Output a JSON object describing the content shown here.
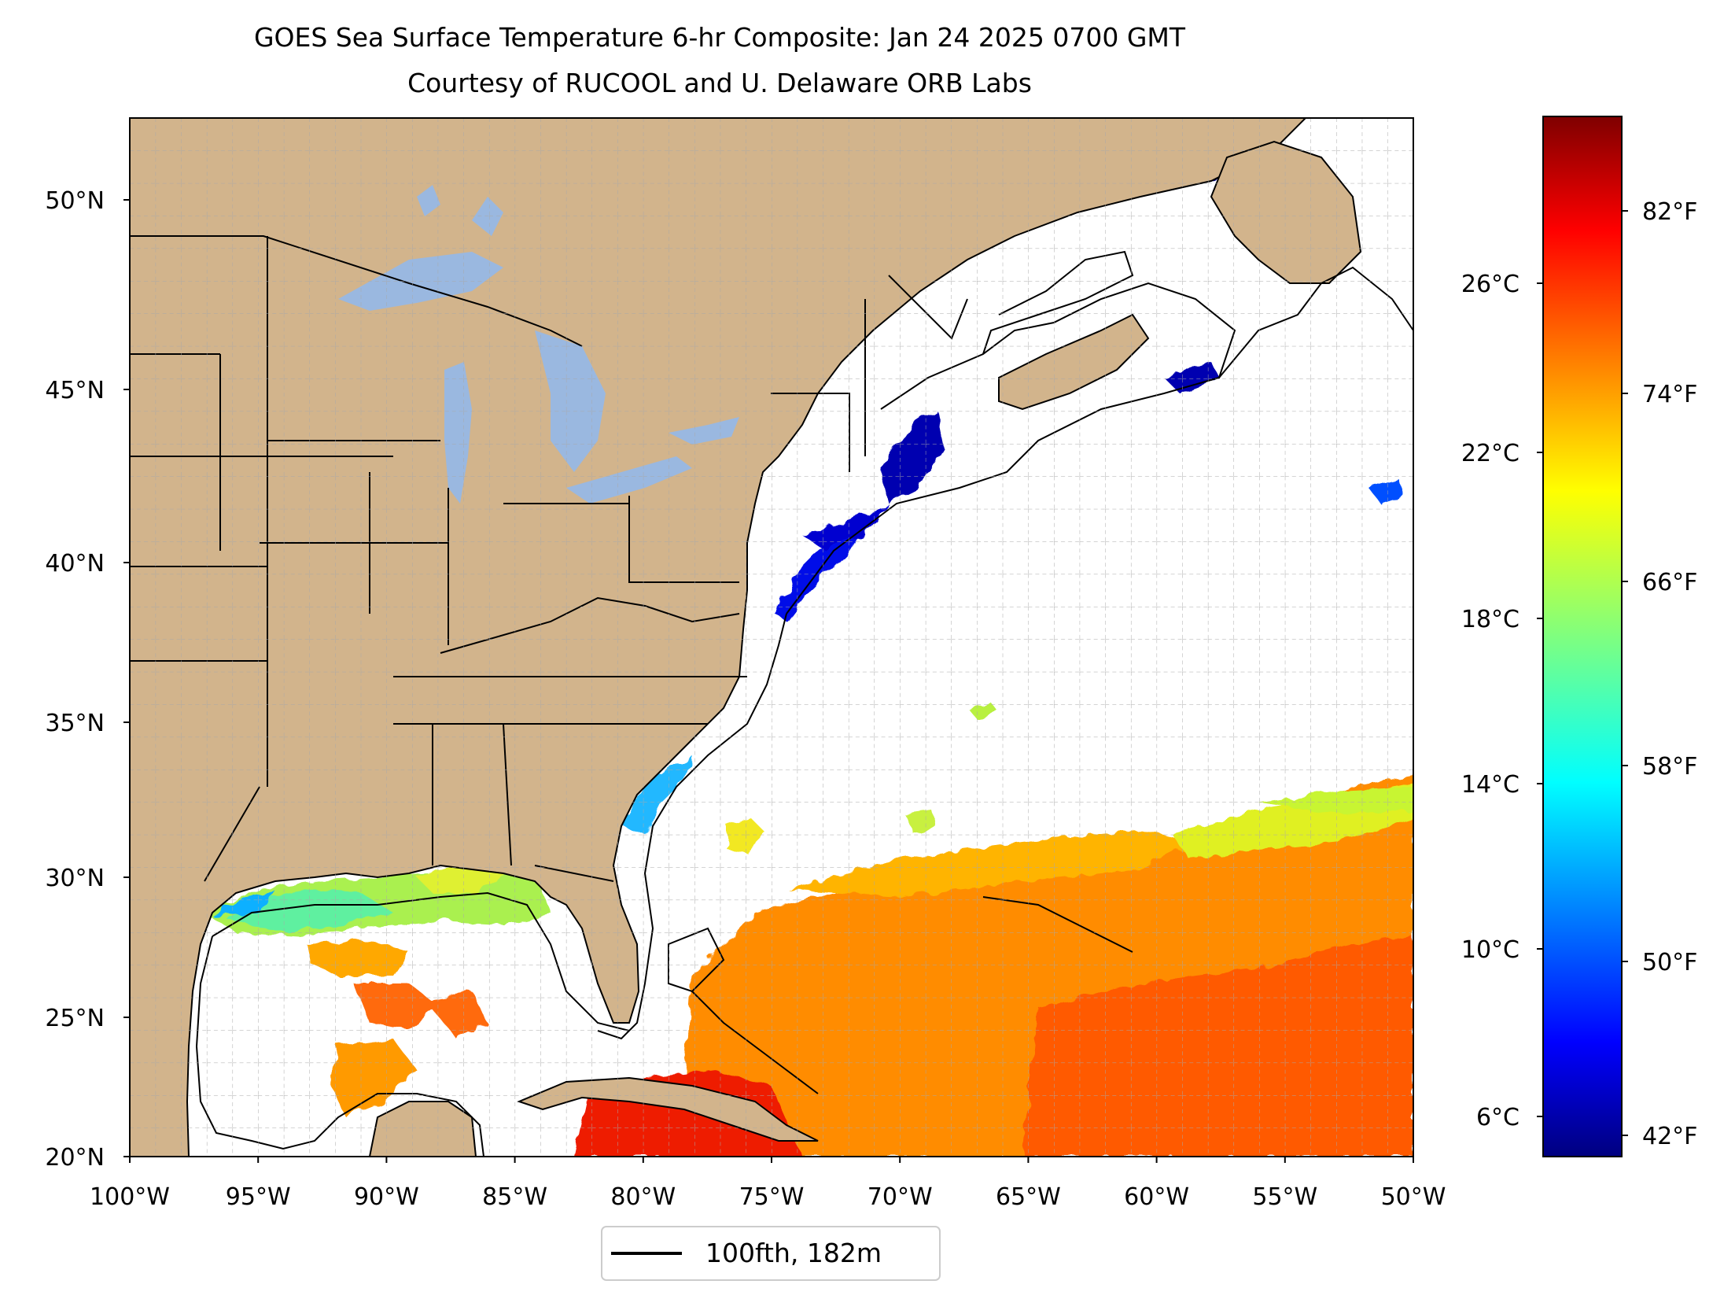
{
  "title": "GOES Sea Surface Temperature 6-hr Composite: Jan 24 2025 0700 GMT",
  "subtitle": "Courtesy of RUCOOL and U. Delaware ORB Labs",
  "map": {
    "lon_range": [
      -100,
      -50
    ],
    "lat_range": [
      20,
      52
    ],
    "gridlines": "on, dashed, 1 degree spacing",
    "land_color": "#d2b48c",
    "lake_color": "#9ab8e0",
    "lon_ticks": [
      "100°W",
      "95°W",
      "90°W",
      "85°W",
      "80°W",
      "75°W",
      "70°W",
      "65°W",
      "60°W",
      "55°W",
      "50°W"
    ],
    "lat_ticks": [
      "20°N",
      "25°N",
      "30°N",
      "35°N",
      "40°N",
      "45°N",
      "50°N"
    ]
  },
  "legend": {
    "label": "100fth, 182m"
  },
  "colorbar": {
    "colormap": "jet",
    "range_f": [
      40,
      88
    ],
    "fahrenheit_ticks": [
      "42°F",
      "50°F",
      "58°F",
      "66°F",
      "74°F",
      "82°F"
    ],
    "celsius_ticks": [
      "6°C",
      "10°C",
      "14°C",
      "18°C",
      "22°C",
      "26°C"
    ]
  }
}
